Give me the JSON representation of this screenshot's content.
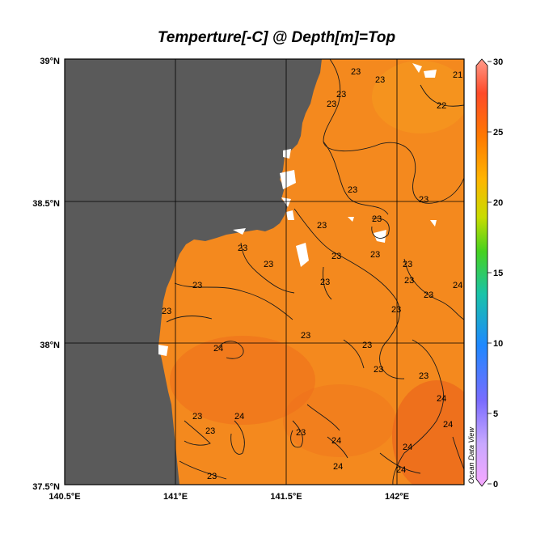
{
  "title": "Temperture[-C] @ Depth[m]=Top",
  "credit": "Ocean Data View",
  "lat_labels": [
    "39°N",
    "38.5°N",
    "38°N",
    "37.5°N"
  ],
  "lon_labels": [
    "140.5°E",
    "141°E",
    "141.5°E",
    "142°E"
  ],
  "colorbar": {
    "ticks": [
      "30",
      "25",
      "20",
      "15",
      "10",
      "5",
      "0"
    ],
    "stops": [
      "#f7a8ff",
      "#c8a8ff",
      "#7a6cff",
      "#1e88ff",
      "#19c3a8",
      "#46d21e",
      "#c8dc00",
      "#ffb400",
      "#ff7800",
      "#ff4a28",
      "#ff9a8a"
    ]
  },
  "colors": {
    "land": "#5a5a5a",
    "sea": "#f4891e",
    "sea_warm": "#ee6e1c",
    "gap": "#ffffff"
  },
  "contour_labels": [
    "21",
    "22",
    "23",
    "24"
  ]
}
